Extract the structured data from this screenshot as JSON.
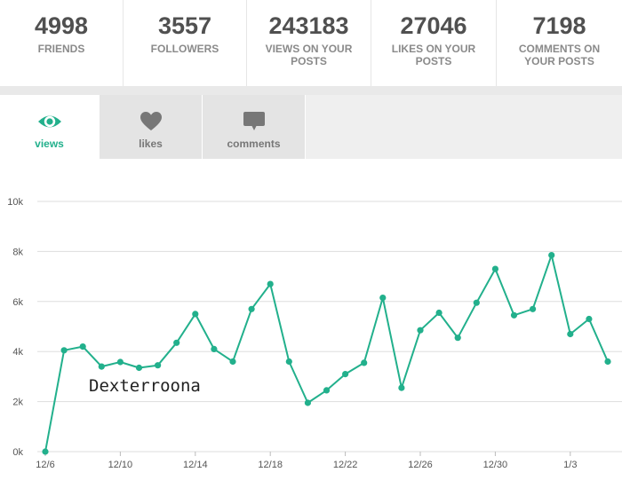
{
  "stats": [
    {
      "value": "4998",
      "label_lines": [
        "FRIENDS"
      ]
    },
    {
      "value": "3557",
      "label_lines": [
        "FOLLOWERS"
      ]
    },
    {
      "value": "243183",
      "label_lines": [
        "VIEWS ON YOUR",
        "POSTS"
      ]
    },
    {
      "value": "27046",
      "label_lines": [
        "LIKES ON YOUR",
        "POSTS"
      ]
    },
    {
      "value": "7198",
      "label_lines": [
        "COMMENTS ON",
        "YOUR POSTS"
      ]
    }
  ],
  "tabs": [
    {
      "label": "views",
      "icon": "eye-icon",
      "active": true
    },
    {
      "label": "likes",
      "icon": "heart-icon",
      "active": false
    },
    {
      "label": "comments",
      "icon": "speech-bubble-icon",
      "active": false
    }
  ],
  "colors": {
    "accent": "#22b08c",
    "inactive_icon": "#777777",
    "tab_inactive_bg": "#e4e4e4",
    "grid": "#dddddd"
  },
  "chart_data": {
    "type": "line",
    "title": "",
    "xlabel": "",
    "ylabel": "",
    "ylim": [
      0,
      10000
    ],
    "ytick_values": [
      0,
      2000,
      4000,
      6000,
      8000,
      10000
    ],
    "ytick_labels": [
      "0k",
      "2k",
      "4k",
      "6k",
      "8k",
      "10k"
    ],
    "xtick_labels": [
      "12/6",
      "12/10",
      "12/14",
      "12/18",
      "12/22",
      "12/26",
      "12/30",
      "1/3"
    ],
    "xtick_dates": [
      "12/6",
      "12/10",
      "12/14",
      "12/18",
      "12/22",
      "12/26",
      "12/30",
      "1/3"
    ],
    "grid": true,
    "series": [
      {
        "x": [
          "12/6",
          "12/7",
          "12/8",
          "12/9",
          "12/10",
          "12/11",
          "12/12",
          "12/13",
          "12/14",
          "12/15",
          "12/16",
          "12/17",
          "12/18",
          "12/19",
          "12/20",
          "12/21",
          "12/22",
          "12/23",
          "12/24",
          "12/25",
          "12/26",
          "12/27",
          "12/28",
          "12/29",
          "12/30",
          "12/31",
          "1/1",
          "1/2",
          "1/3",
          "1/4",
          "1/5"
        ],
        "values": [
          0,
          4050,
          4200,
          3400,
          3580,
          3350,
          3450,
          4350,
          5500,
          4100,
          3600,
          5700,
          6700,
          3600,
          1950,
          2450,
          3100,
          3550,
          6150,
          2550,
          4850,
          5550,
          4550,
          5950,
          7300,
          5450,
          5700,
          7850,
          4700,
          5300,
          3600
        ]
      }
    ],
    "annotations": [
      "Dexterroona"
    ]
  }
}
